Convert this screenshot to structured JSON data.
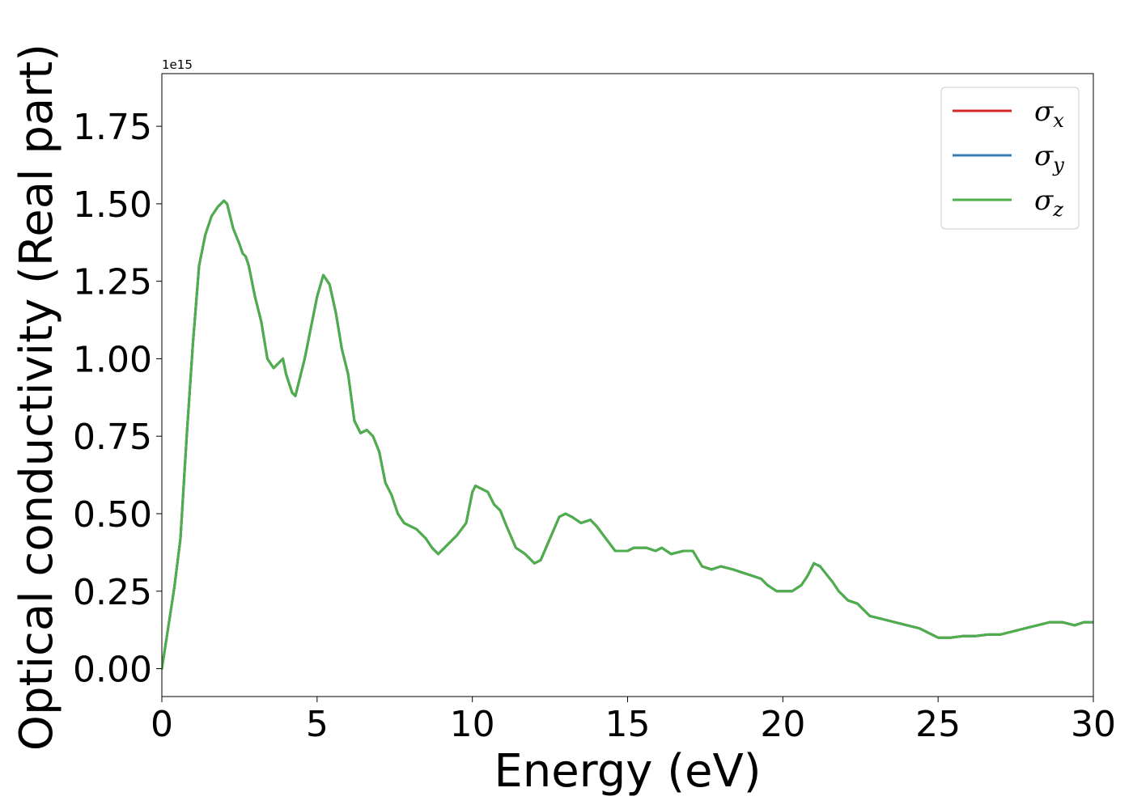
{
  "chart_data": {
    "type": "line",
    "xlabel": "Energy (eV)",
    "ylabel": "Optical conductivity (Real part)",
    "y_offset_label": "1e15",
    "xlim": [
      0,
      30
    ],
    "ylim": [
      -0.09,
      1.92
    ],
    "y_scale_factor": 1000000000000000.0,
    "grid": false,
    "legend_position": "top-right",
    "x_ticks": [
      "0",
      "5",
      "10",
      "15",
      "20",
      "25",
      "30"
    ],
    "x_tick_values": [
      0,
      5,
      10,
      15,
      20,
      25,
      30
    ],
    "y_ticks": [
      "0.00",
      "0.25",
      "0.50",
      "0.75",
      "1.00",
      "1.25",
      "1.50",
      "1.75"
    ],
    "y_tick_values": [
      0,
      0.25,
      0.5,
      0.75,
      1.0,
      1.25,
      1.5,
      1.75
    ],
    "x": [
      0,
      0.2,
      0.4,
      0.6,
      0.8,
      1.0,
      1.2,
      1.4,
      1.6,
      1.8,
      2.0,
      2.1,
      2.3,
      2.5,
      2.6,
      2.7,
      2.8,
      3.0,
      3.2,
      3.4,
      3.6,
      3.7,
      3.9,
      4.0,
      4.2,
      4.3,
      4.6,
      5.0,
      5.2,
      5.4,
      5.6,
      5.8,
      6.0,
      6.2,
      6.4,
      6.6,
      6.8,
      7.0,
      7.2,
      7.4,
      7.6,
      7.8,
      8.0,
      8.2,
      8.5,
      8.7,
      8.9,
      9.2,
      9.5,
      9.8,
      10.0,
      10.1,
      10.3,
      10.5,
      10.7,
      10.9,
      11.1,
      11.4,
      11.7,
      12.0,
      12.2,
      12.5,
      12.8,
      13.0,
      13.2,
      13.5,
      13.8,
      14.0,
      14.3,
      14.6,
      15.0,
      15.2,
      15.6,
      15.9,
      16.1,
      16.4,
      16.8,
      17.1,
      17.4,
      17.7,
      18.0,
      18.4,
      18.7,
      19.0,
      19.3,
      19.5,
      19.8,
      20.0,
      20.3,
      20.6,
      20.8,
      21.0,
      21.2,
      21.6,
      21.8,
      22.1,
      22.4,
      22.8,
      23.2,
      23.6,
      24.0,
      24.4,
      24.8,
      25.0,
      25.4,
      25.8,
      26.2,
      26.6,
      27.0,
      27.4,
      27.8,
      28.2,
      28.6,
      29.0,
      29.4,
      29.7,
      30.0
    ],
    "series": [
      {
        "name": "σx",
        "label_base": "σ",
        "label_sub": "x",
        "color": "#d62728",
        "values": [
          0.0,
          0.13,
          0.26,
          0.42,
          0.75,
          1.05,
          1.3,
          1.4,
          1.46,
          1.49,
          1.51,
          1.5,
          1.42,
          1.37,
          1.34,
          1.33,
          1.3,
          1.2,
          1.12,
          1.0,
          0.97,
          0.98,
          1.0,
          0.95,
          0.89,
          0.88,
          1.0,
          1.2,
          1.27,
          1.24,
          1.15,
          1.03,
          0.95,
          0.8,
          0.76,
          0.77,
          0.75,
          0.7,
          0.6,
          0.56,
          0.5,
          0.47,
          0.46,
          0.45,
          0.42,
          0.39,
          0.37,
          0.4,
          0.43,
          0.47,
          0.57,
          0.59,
          0.58,
          0.57,
          0.53,
          0.51,
          0.46,
          0.39,
          0.37,
          0.34,
          0.35,
          0.42,
          0.49,
          0.5,
          0.49,
          0.47,
          0.48,
          0.46,
          0.42,
          0.38,
          0.38,
          0.39,
          0.39,
          0.38,
          0.39,
          0.37,
          0.38,
          0.38,
          0.33,
          0.32,
          0.33,
          0.32,
          0.31,
          0.3,
          0.29,
          0.27,
          0.25,
          0.25,
          0.25,
          0.27,
          0.3,
          0.34,
          0.33,
          0.28,
          0.25,
          0.22,
          0.21,
          0.17,
          0.16,
          0.15,
          0.14,
          0.13,
          0.11,
          0.1,
          0.1,
          0.105,
          0.105,
          0.11,
          0.11,
          0.12,
          0.13,
          0.14,
          0.15,
          0.15,
          0.14,
          0.15,
          0.15
        ]
      },
      {
        "name": "σy",
        "label_base": "σ",
        "label_sub": "y",
        "color": "#377eb8",
        "values": [
          0.0,
          0.13,
          0.26,
          0.42,
          0.75,
          1.05,
          1.3,
          1.4,
          1.46,
          1.49,
          1.51,
          1.5,
          1.42,
          1.37,
          1.34,
          1.33,
          1.3,
          1.2,
          1.12,
          1.0,
          0.97,
          0.98,
          1.0,
          0.95,
          0.89,
          0.88,
          1.0,
          1.2,
          1.27,
          1.24,
          1.15,
          1.03,
          0.95,
          0.8,
          0.76,
          0.77,
          0.75,
          0.7,
          0.6,
          0.56,
          0.5,
          0.47,
          0.46,
          0.45,
          0.42,
          0.39,
          0.37,
          0.4,
          0.43,
          0.47,
          0.57,
          0.59,
          0.58,
          0.57,
          0.53,
          0.51,
          0.46,
          0.39,
          0.37,
          0.34,
          0.35,
          0.42,
          0.49,
          0.5,
          0.49,
          0.47,
          0.48,
          0.46,
          0.42,
          0.38,
          0.38,
          0.39,
          0.39,
          0.38,
          0.39,
          0.37,
          0.38,
          0.38,
          0.33,
          0.32,
          0.33,
          0.32,
          0.31,
          0.3,
          0.29,
          0.27,
          0.25,
          0.25,
          0.25,
          0.27,
          0.3,
          0.34,
          0.33,
          0.28,
          0.25,
          0.22,
          0.21,
          0.17,
          0.16,
          0.15,
          0.14,
          0.13,
          0.11,
          0.1,
          0.1,
          0.105,
          0.105,
          0.11,
          0.11,
          0.12,
          0.13,
          0.14,
          0.15,
          0.15,
          0.14,
          0.15,
          0.15
        ]
      },
      {
        "name": "σz",
        "label_base": "σ",
        "label_sub": "z",
        "color": "#4daf4a",
        "values": [
          0.0,
          0.13,
          0.26,
          0.42,
          0.75,
          1.05,
          1.3,
          1.4,
          1.46,
          1.49,
          1.51,
          1.5,
          1.42,
          1.37,
          1.34,
          1.33,
          1.3,
          1.2,
          1.12,
          1.0,
          0.97,
          0.98,
          1.0,
          0.95,
          0.89,
          0.88,
          1.0,
          1.2,
          1.27,
          1.24,
          1.15,
          1.03,
          0.95,
          0.8,
          0.76,
          0.77,
          0.75,
          0.7,
          0.6,
          0.56,
          0.5,
          0.47,
          0.46,
          0.45,
          0.42,
          0.39,
          0.37,
          0.4,
          0.43,
          0.47,
          0.57,
          0.59,
          0.58,
          0.57,
          0.53,
          0.51,
          0.46,
          0.39,
          0.37,
          0.34,
          0.35,
          0.42,
          0.49,
          0.5,
          0.49,
          0.47,
          0.48,
          0.46,
          0.42,
          0.38,
          0.38,
          0.39,
          0.39,
          0.38,
          0.39,
          0.37,
          0.38,
          0.38,
          0.33,
          0.32,
          0.33,
          0.32,
          0.31,
          0.3,
          0.29,
          0.27,
          0.25,
          0.25,
          0.25,
          0.27,
          0.3,
          0.34,
          0.33,
          0.28,
          0.25,
          0.22,
          0.21,
          0.17,
          0.16,
          0.15,
          0.14,
          0.13,
          0.11,
          0.1,
          0.1,
          0.105,
          0.105,
          0.11,
          0.11,
          0.12,
          0.13,
          0.14,
          0.15,
          0.15,
          0.14,
          0.15,
          0.15
        ]
      }
    ]
  }
}
